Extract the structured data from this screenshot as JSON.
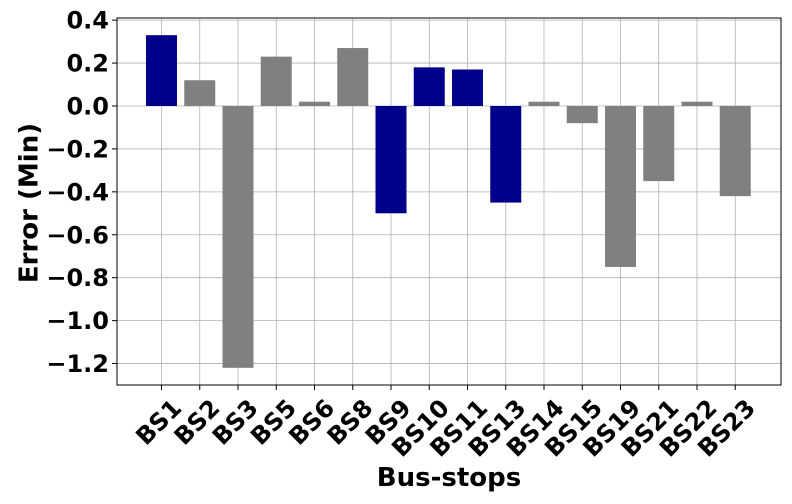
{
  "chart_data": {
    "type": "bar",
    "title": "",
    "xlabel": "Bus-stops",
    "ylabel": "Error (Min)",
    "ylim": [
      -1.3,
      0.41
    ],
    "yticks": [
      0.4,
      0.2,
      0.0,
      -0.2,
      -0.4,
      -0.6,
      -0.8,
      -1.0,
      -1.2
    ],
    "ytick_labels": [
      "0.4",
      "0.2",
      "0.0",
      "−0.2",
      "−0.4",
      "−0.6",
      "−0.8",
      "−1.0",
      "−1.2"
    ],
    "grid": true,
    "categories": [
      "BS1",
      "BS2",
      "BS3",
      "BS5",
      "BS6",
      "BS8",
      "BS9",
      "BS10",
      "BS11",
      "BS13",
      "BS14",
      "BS15",
      "BS19",
      "BS21",
      "BS22",
      "BS23"
    ],
    "values": [
      0.33,
      0.12,
      -1.22,
      0.23,
      0.02,
      0.27,
      -0.5,
      0.18,
      0.17,
      -0.45,
      0.02,
      -0.08,
      -0.75,
      -0.35,
      0.02,
      -0.42
    ],
    "bar_colors": [
      "#00008b",
      "#808080",
      "#808080",
      "#808080",
      "#808080",
      "#808080",
      "#00008b",
      "#00008b",
      "#00008b",
      "#00008b",
      "#808080",
      "#808080",
      "#808080",
      "#808080",
      "#808080",
      "#808080"
    ]
  }
}
